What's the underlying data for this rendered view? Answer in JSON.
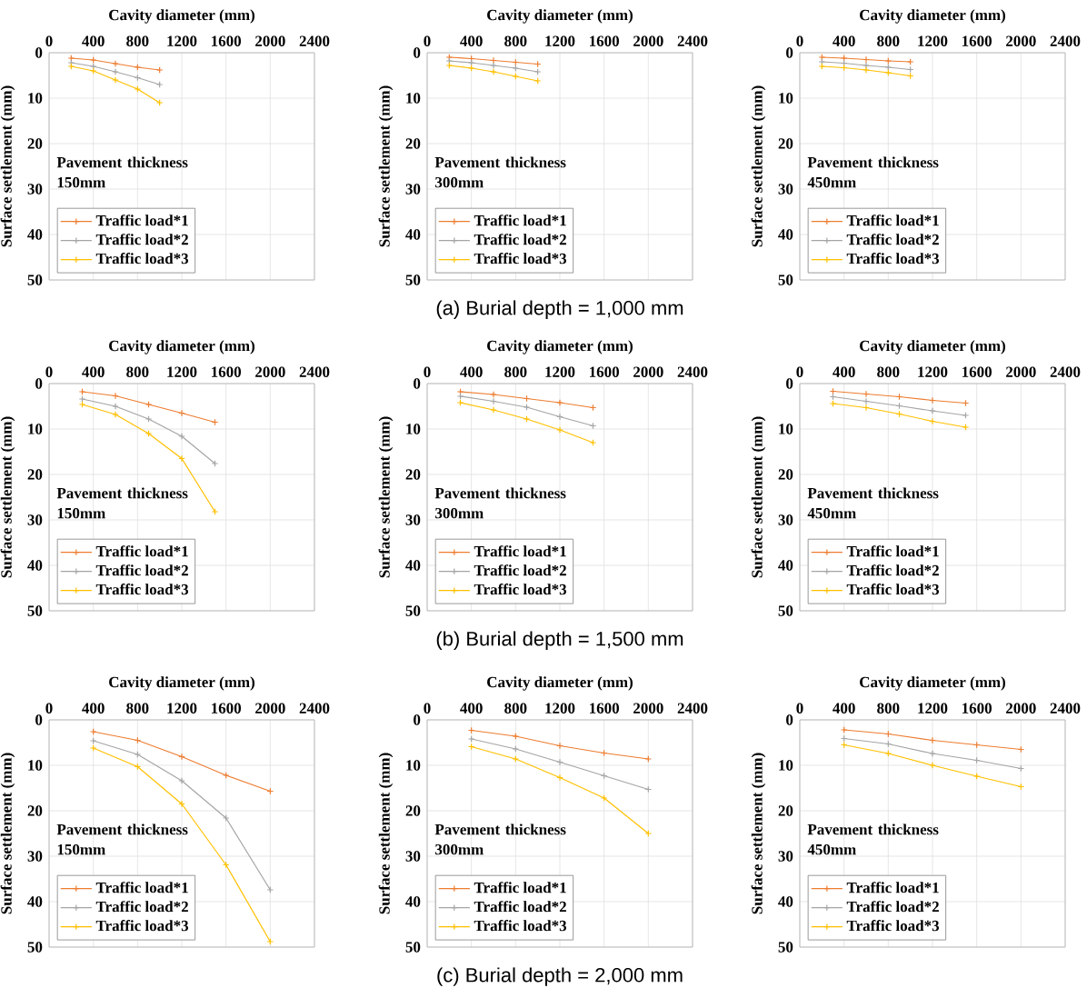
{
  "chart_data": [
    {
      "type": "line",
      "xlabel": "Cavity diameter (mm)",
      "ylabel": "Surface settlement (mm)",
      "xlim": [
        0,
        2400
      ],
      "xticks": [
        0,
        400,
        800,
        1200,
        1600,
        2000,
        2400
      ],
      "ylim": [
        50,
        0
      ],
      "yticks": [
        0,
        10,
        20,
        30,
        40,
        50
      ],
      "grid": true,
      "legend": "bottom left",
      "marker": "cross",
      "line_style": "solid",
      "annotations": [
        "Pavement thickness 150mm"
      ],
      "x": [
        200,
        400,
        600,
        800,
        1000
      ],
      "series": [
        {
          "name": "Traffic load*1",
          "color": "#ed7d31",
          "values": [
            1.2,
            1.6,
            2.4,
            3.2,
            3.8
          ]
        },
        {
          "name": "Traffic load*2",
          "color": "#a5a5a5",
          "values": [
            2.2,
            3,
            4.2,
            5.5,
            7
          ]
        },
        {
          "name": "Traffic load*3",
          "color": "#ffc000",
          "values": [
            3,
            4,
            6,
            8,
            11
          ]
        }
      ]
    },
    {
      "type": "line",
      "xlabel": "Cavity diameter (mm)",
      "ylabel": "Surface settlement (mm)",
      "xlim": [
        0,
        2400
      ],
      "xticks": [
        0,
        400,
        800,
        1200,
        1600,
        2000,
        2400
      ],
      "ylim": [
        50,
        0
      ],
      "yticks": [
        0,
        10,
        20,
        30,
        40,
        50
      ],
      "grid": true,
      "legend": "bottom left",
      "marker": "cross",
      "line_style": "solid",
      "annotations": [
        "Pavement thickness 300mm",
        "(a) Burial depth = 1,000 mm"
      ],
      "x": [
        200,
        400,
        600,
        800,
        1000
      ],
      "series": [
        {
          "name": "Traffic load*1",
          "color": "#ed7d31",
          "values": [
            1,
            1.3,
            1.7,
            2.1,
            2.5
          ]
        },
        {
          "name": "Traffic load*2",
          "color": "#a5a5a5",
          "values": [
            1.8,
            2.2,
            2.8,
            3.4,
            4.2
          ]
        },
        {
          "name": "Traffic load*3",
          "color": "#ffc000",
          "values": [
            2.8,
            3.4,
            4.2,
            5.2,
            6.2
          ]
        }
      ]
    },
    {
      "type": "line",
      "xlabel": "Cavity diameter (mm)",
      "ylabel": "Surface settlement (mm)",
      "xlim": [
        0,
        2400
      ],
      "xticks": [
        0,
        400,
        800,
        1200,
        1600,
        2000,
        2400
      ],
      "ylim": [
        50,
        0
      ],
      "yticks": [
        0,
        10,
        20,
        30,
        40,
        50
      ],
      "grid": true,
      "legend": "bottom left",
      "marker": "cross",
      "line_style": "solid",
      "annotations": [
        "Pavement thickness 450mm"
      ],
      "x": [
        200,
        400,
        600,
        800,
        1000
      ],
      "series": [
        {
          "name": "Traffic load*1",
          "color": "#ed7d31",
          "values": [
            1,
            1.2,
            1.5,
            1.8,
            2
          ]
        },
        {
          "name": "Traffic load*2",
          "color": "#a5a5a5",
          "values": [
            2,
            2.3,
            2.8,
            3.2,
            3.7
          ]
        },
        {
          "name": "Traffic load*3",
          "color": "#ffc000",
          "values": [
            3,
            3.3,
            3.8,
            4.4,
            5.1
          ]
        }
      ]
    },
    {
      "type": "line",
      "xlabel": "Cavity diameter (mm)",
      "ylabel": "Surface settlement (mm)",
      "xlim": [
        0,
        2400
      ],
      "xticks": [
        0,
        400,
        800,
        1200,
        1600,
        2000,
        2400
      ],
      "ylim": [
        50,
        0
      ],
      "yticks": [
        0,
        10,
        20,
        30,
        40,
        50
      ],
      "grid": true,
      "legend": "bottom left",
      "marker": "cross",
      "line_style": "solid",
      "annotations": [
        "Pavement thickness 150mm"
      ],
      "x": [
        300,
        600,
        900,
        1200,
        1500
      ],
      "series": [
        {
          "name": "Traffic load*1",
          "color": "#ed7d31",
          "values": [
            1.8,
            2.7,
            4.6,
            6.5,
            8.5
          ]
        },
        {
          "name": "Traffic load*2",
          "color": "#a5a5a5",
          "values": [
            3.4,
            5,
            7.8,
            11.6,
            17.6
          ]
        },
        {
          "name": "Traffic load*3",
          "color": "#ffc000",
          "values": [
            4.6,
            6.8,
            11,
            16.5,
            28.2
          ]
        }
      ]
    },
    {
      "type": "line",
      "xlabel": "Cavity diameter (mm)",
      "ylabel": "Surface settlement (mm)",
      "xlim": [
        0,
        2400
      ],
      "xticks": [
        0,
        400,
        800,
        1200,
        1600,
        2000,
        2400
      ],
      "ylim": [
        50,
        0
      ],
      "yticks": [
        0,
        10,
        20,
        30,
        40,
        50
      ],
      "grid": true,
      "legend": "bottom left",
      "marker": "cross",
      "line_style": "solid",
      "annotations": [
        "Pavement thickness 300mm",
        "(b) Burial depth = 1,500 mm"
      ],
      "x": [
        300,
        600,
        900,
        1200,
        1500
      ],
      "series": [
        {
          "name": "Traffic load*1",
          "color": "#ed7d31",
          "values": [
            1.8,
            2.4,
            3.3,
            4.2,
            5.3
          ]
        },
        {
          "name": "Traffic load*2",
          "color": "#a5a5a5",
          "values": [
            2.8,
            3.9,
            5.2,
            7.3,
            9.3
          ]
        },
        {
          "name": "Traffic load*3",
          "color": "#ffc000",
          "values": [
            4.2,
            5.8,
            7.8,
            10.2,
            13
          ]
        }
      ]
    },
    {
      "type": "line",
      "xlabel": "Cavity diameter (mm)",
      "ylabel": "Surface settlement (mm)",
      "xlim": [
        0,
        2400
      ],
      "xticks": [
        0,
        400,
        800,
        1200,
        1600,
        2000,
        2400
      ],
      "ylim": [
        50,
        0
      ],
      "yticks": [
        0,
        10,
        20,
        30,
        40,
        50
      ],
      "grid": true,
      "legend": "bottom left",
      "marker": "cross",
      "line_style": "solid",
      "annotations": [
        "Pavement thickness 450mm"
      ],
      "x": [
        300,
        600,
        900,
        1200,
        1500
      ],
      "series": [
        {
          "name": "Traffic load*1",
          "color": "#ed7d31",
          "values": [
            1.7,
            2.3,
            2.9,
            3.7,
            4.3
          ]
        },
        {
          "name": "Traffic load*2",
          "color": "#a5a5a5",
          "values": [
            2.9,
            3.9,
            4.9,
            6,
            7
          ]
        },
        {
          "name": "Traffic load*3",
          "color": "#ffc000",
          "values": [
            4.4,
            5.3,
            6.7,
            8.3,
            9.6
          ]
        }
      ]
    },
    {
      "type": "line",
      "xlabel": "Cavity diameter (mm)",
      "ylabel": "Surface settlement (mm)",
      "xlim": [
        0,
        2400
      ],
      "xticks": [
        0,
        400,
        800,
        1200,
        1600,
        2000,
        2400
      ],
      "ylim": [
        50,
        0
      ],
      "yticks": [
        0,
        10,
        20,
        30,
        40,
        50
      ],
      "grid": true,
      "legend": "bottom left",
      "marker": "cross",
      "line_style": "solid",
      "annotations": [
        "Pavement thickness 150mm"
      ],
      "x": [
        400,
        800,
        1200,
        1600,
        2000
      ],
      "series": [
        {
          "name": "Traffic load*1",
          "color": "#ed7d31",
          "values": [
            2.6,
            4.5,
            8.1,
            12.2,
            15.7
          ]
        },
        {
          "name": "Traffic load*2",
          "color": "#a5a5a5",
          "values": [
            4.6,
            7.6,
            13.4,
            21.6,
            37.4
          ]
        },
        {
          "name": "Traffic load*3",
          "color": "#ffc000",
          "values": [
            6.2,
            10.3,
            18.5,
            31.9,
            48.8
          ]
        }
      ]
    },
    {
      "type": "line",
      "xlabel": "Cavity diameter (mm)",
      "ylabel": "Surface settlement (mm)",
      "xlim": [
        0,
        2400
      ],
      "xticks": [
        0,
        400,
        800,
        1200,
        1600,
        2000,
        2400
      ],
      "ylim": [
        50,
        0
      ],
      "yticks": [
        0,
        10,
        20,
        30,
        40,
        50
      ],
      "grid": true,
      "legend": "bottom left",
      "marker": "cross",
      "line_style": "solid",
      "annotations": [
        "Pavement thickness 300mm",
        "(c) Burial depth = 2,000 mm"
      ],
      "x": [
        400,
        800,
        1200,
        1600,
        2000
      ],
      "series": [
        {
          "name": "Traffic load*1",
          "color": "#ed7d31",
          "values": [
            2.3,
            3.6,
            5.7,
            7.3,
            8.6
          ]
        },
        {
          "name": "Traffic load*2",
          "color": "#a5a5a5",
          "values": [
            4.2,
            6.4,
            9.3,
            12.3,
            15.3
          ]
        },
        {
          "name": "Traffic load*3",
          "color": "#ffc000",
          "values": [
            5.9,
            8.6,
            12.7,
            17.2,
            25
          ]
        }
      ]
    },
    {
      "type": "line",
      "xlabel": "Cavity diameter (mm)",
      "ylabel": "Surface settlement (mm)",
      "xlim": [
        0,
        2400
      ],
      "xticks": [
        0,
        400,
        800,
        1200,
        1600,
        2000,
        2400
      ],
      "ylim": [
        50,
        0
      ],
      "yticks": [
        0,
        10,
        20,
        30,
        40,
        50
      ],
      "grid": true,
      "legend": "bottom left",
      "marker": "cross",
      "line_style": "solid",
      "annotations": [
        "Pavement thickness 450mm"
      ],
      "x": [
        400,
        800,
        1200,
        1600,
        2000
      ],
      "series": [
        {
          "name": "Traffic load*1",
          "color": "#ed7d31",
          "values": [
            2.2,
            3.1,
            4.5,
            5.5,
            6.5
          ]
        },
        {
          "name": "Traffic load*2",
          "color": "#a5a5a5",
          "values": [
            4.1,
            5.3,
            7.4,
            8.9,
            10.7
          ]
        },
        {
          "name": "Traffic load*3",
          "color": "#ffc000",
          "values": [
            5.5,
            7.4,
            10,
            12.4,
            14.7
          ]
        }
      ]
    }
  ]
}
